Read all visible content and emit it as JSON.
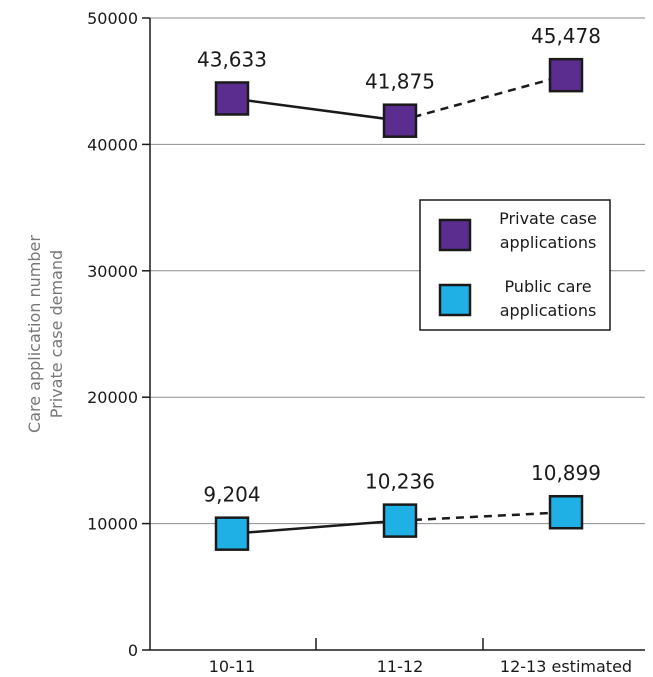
{
  "chart_data": {
    "type": "line",
    "categories": [
      "10-11",
      "11-12",
      "12-13 estimated"
    ],
    "ylabel_lines": [
      "Care application number",
      "Private case demand"
    ],
    "ylim": [
      0,
      50000
    ],
    "yticks": [
      "0",
      "10000",
      "20000",
      "30000",
      "40000",
      "50000"
    ],
    "grid": true,
    "legend_position": "right",
    "series": [
      {
        "name_lines": [
          "Private case",
          "applications"
        ],
        "values": [
          43633,
          41875,
          45478
        ],
        "labels": [
          "43,633",
          "41,875",
          "45,478"
        ],
        "color": "#5b2d8e",
        "estimated_from_index": 1
      },
      {
        "name_lines": [
          "Public care",
          "applications"
        ],
        "values": [
          9204,
          10236,
          10899
        ],
        "labels": [
          "9,204",
          "10,236",
          "10,899"
        ],
        "color": "#1fb0e6",
        "estimated_from_index": 1
      }
    ]
  }
}
